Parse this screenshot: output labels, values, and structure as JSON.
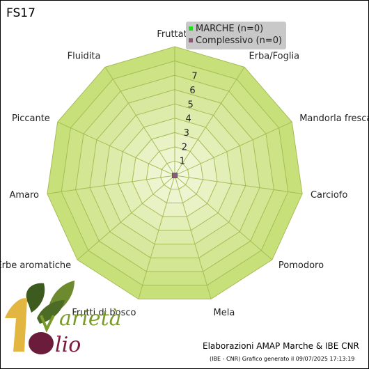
{
  "chart_data": {
    "type": "radar",
    "title": "FS17",
    "axes": [
      "Fruttato",
      "Erba/Foglia",
      "Mandorla fresca",
      "Carciofo",
      "Pomodoro",
      "Mela",
      "Frutti di bosco",
      "Erbe aromatiche",
      "Amaro",
      "Piccante",
      "Fluidita"
    ],
    "rlim": [
      0,
      9
    ],
    "ticks": [
      1,
      2,
      3,
      4,
      5,
      6,
      7
    ],
    "grid": true,
    "legend_position": "top-right",
    "series": [
      {
        "name": "MARCHE  (n=0)",
        "color": "#22dd22",
        "values": [
          0,
          0,
          0,
          0,
          0,
          0,
          0,
          0,
          0,
          0,
          0
        ]
      },
      {
        "name": "Complessivo (n=0)",
        "color": "#8a5a78",
        "values": [
          0,
          0,
          0,
          0,
          0,
          0,
          0,
          0,
          0,
          0,
          0
        ]
      }
    ]
  },
  "colors": {
    "ring_outer": "#c8e07a",
    "ring_inner": "#f2f8dc",
    "grid_line": "#a6bd55"
  },
  "footer": {
    "credit": "Elaborazioni AMAP Marche & IBE CNR",
    "generated": "(IBE - CNR) Grafico generato il 09/07/2025 17:13:19"
  },
  "logo": {
    "text_top": "arietà",
    "text_bottom": "lio"
  }
}
